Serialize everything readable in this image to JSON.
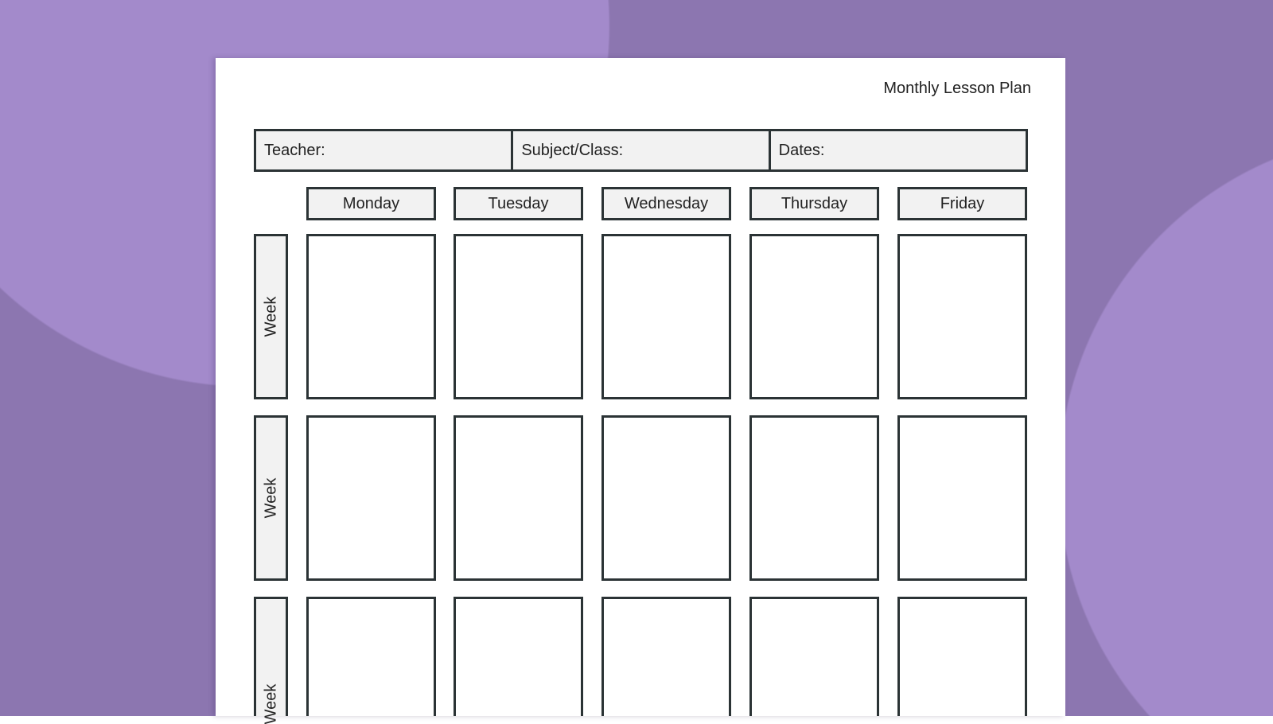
{
  "document": {
    "title": "Monthly Lesson Plan",
    "header_fields": [
      "Teacher:",
      "Subject/Class:",
      "Dates:"
    ],
    "days": [
      "Monday",
      "Tuesday",
      "Wednesday",
      "Thursday",
      "Friday"
    ],
    "week_label": "Week",
    "weeks_visible": 3
  },
  "colors": {
    "background": "#8c76b0",
    "background_circle": "#a38acb",
    "border": "#2b3335",
    "label_fill": "#f2f2f2"
  }
}
